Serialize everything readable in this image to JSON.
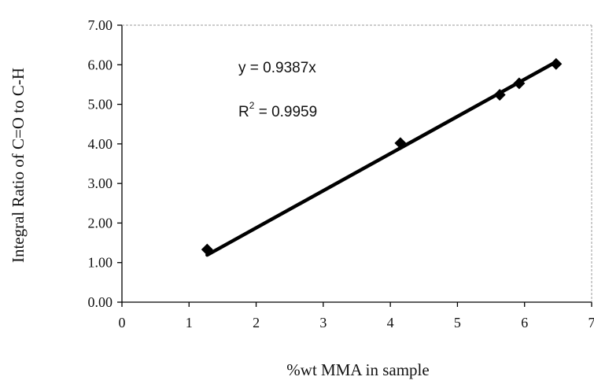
{
  "chart_data": {
    "type": "scatter",
    "title": "",
    "xlabel": "%wt MMA in sample",
    "ylabel": "Integral Ratio of C=O to C-H",
    "xlim": [
      0,
      7
    ],
    "ylim": [
      0,
      7
    ],
    "xticks": [
      "0",
      "1",
      "2",
      "3",
      "4",
      "5",
      "6",
      "7"
    ],
    "yticks": [
      "0.00",
      "1.00",
      "2.00",
      "3.00",
      "4.00",
      "5.00",
      "6.00",
      "7.00"
    ],
    "grid": false,
    "legend": "none",
    "marker": "diamond",
    "series": [
      {
        "points": [
          {
            "x": 1.27,
            "y": 1.33
          },
          {
            "x": 4.15,
            "y": 4.02
          },
          {
            "x": 5.63,
            "y": 5.24
          },
          {
            "x": 5.92,
            "y": 5.53
          },
          {
            "x": 6.47,
            "y": 6.02
          }
        ]
      }
    ],
    "trendline": {
      "type": "linear-through-origin",
      "slope": 0.9387,
      "x_range": [
        1.27,
        6.47
      ]
    },
    "annotations": {
      "equation_text": "y = 0.9387x",
      "r2_prefix": "R",
      "r2_superscript": "2",
      "r2_value_text": " = 0.9959"
    },
    "colors": {
      "marker": "#000000",
      "trendline": "#000000",
      "axis": "#000000"
    }
  }
}
